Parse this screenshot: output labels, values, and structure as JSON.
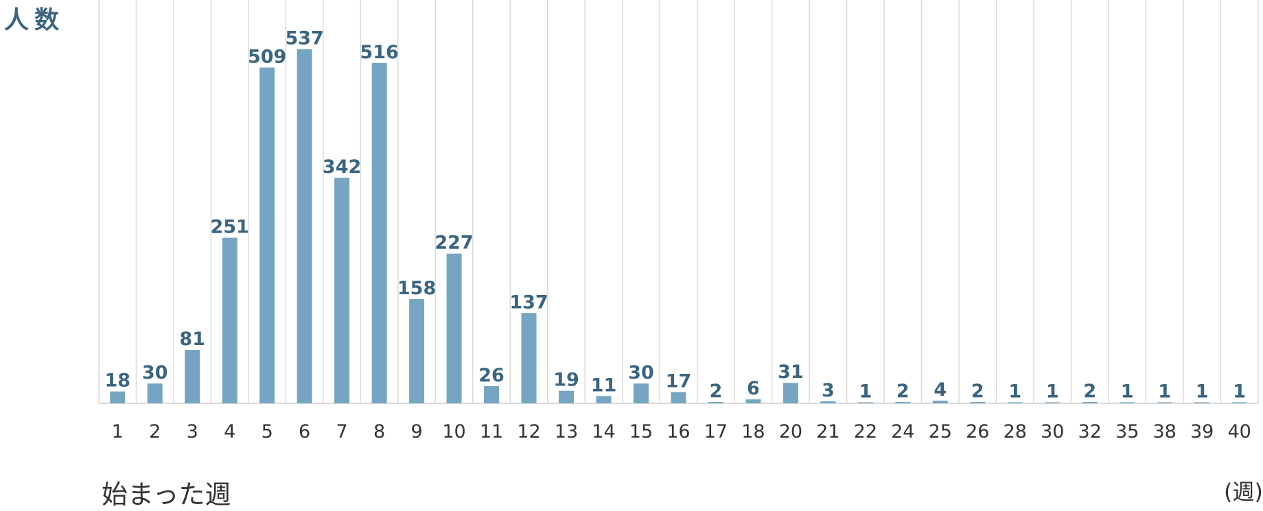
{
  "chart_data": {
    "type": "bar",
    "ylabel": "人数",
    "xlabel": "始まった週",
    "x_unit": "(週)",
    "categories": [
      "1",
      "2",
      "3",
      "4",
      "5",
      "6",
      "7",
      "8",
      "9",
      "10",
      "11",
      "12",
      "13",
      "14",
      "15",
      "16",
      "17",
      "18",
      "20",
      "21",
      "22",
      "24",
      "25",
      "26",
      "28",
      "30",
      "32",
      "35",
      "38",
      "39",
      "40"
    ],
    "values": [
      18,
      30,
      81,
      251,
      509,
      537,
      342,
      516,
      158,
      227,
      26,
      137,
      19,
      11,
      30,
      17,
      2,
      6,
      31,
      3,
      1,
      2,
      4,
      2,
      1,
      1,
      2,
      1,
      1,
      1,
      1
    ],
    "ylim": [
      0,
      600
    ],
    "grid": "vertical",
    "colors": {
      "bar": "#76a5c3",
      "label": "#3b6580",
      "tick": "#333333",
      "grid": "#dadada"
    }
  }
}
